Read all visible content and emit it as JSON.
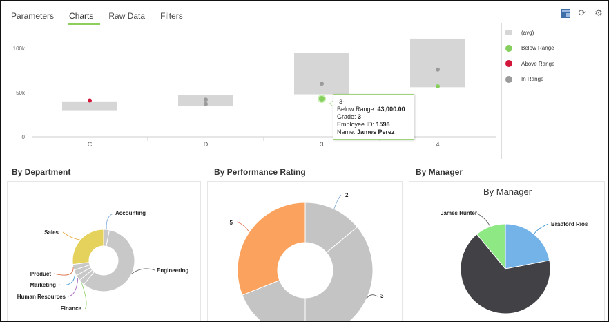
{
  "tabs": [
    {
      "label": "Parameters",
      "active": false
    },
    {
      "label": "Charts",
      "active": true
    },
    {
      "label": "Raw Data",
      "active": false
    },
    {
      "label": "Filters",
      "active": false
    }
  ],
  "toolbar": {
    "icons": [
      "layout-icon",
      "refresh-icon",
      "gear-icon"
    ]
  },
  "legend": [
    {
      "label": "(avg)",
      "color": "#d6d6d6",
      "shape": "rect"
    },
    {
      "label": "Below Range",
      "color": "#86cf5e",
      "shape": "dot"
    },
    {
      "label": "Above Range",
      "color": "#d3173a",
      "shape": "dot"
    },
    {
      "label": "In Range",
      "color": "#9b9b9b",
      "shape": "dot"
    }
  ],
  "tooltip": {
    "header": "-3-",
    "line1_label": "Below Range: ",
    "line1_value": "43,000.00",
    "line2_label": "Grade: ",
    "line2_value": "3",
    "line3_label": "Employee ID: ",
    "line3_value": "1598",
    "line4_label": "Name: ",
    "line4_value": "James Perez"
  },
  "panels": {
    "department_title": "By Department",
    "performance_title": "By Performance Rating",
    "manager_title": "By Manager"
  },
  "chart_data": [
    {
      "type": "scatter",
      "categories": [
        "C",
        "D",
        "3",
        "4"
      ],
      "y_ticks": [
        "0",
        "50k",
        "100k"
      ],
      "ylim": [
        0,
        125000
      ],
      "range_boxes": [
        {
          "category": "C",
          "low": 30000,
          "high": 40000
        },
        {
          "category": "D",
          "low": 35000,
          "high": 47000
        },
        {
          "category": "3",
          "low": 48000,
          "high": 95000
        },
        {
          "category": "4",
          "low": 56000,
          "high": 111000
        }
      ],
      "points": [
        {
          "category": "C",
          "value": 41000,
          "status": "above"
        },
        {
          "category": "D",
          "value": 42000,
          "status": "in"
        },
        {
          "category": "D",
          "value": 37000,
          "status": "in"
        },
        {
          "category": "3",
          "value": 60000,
          "status": "in"
        },
        {
          "category": "3",
          "value": 43000,
          "status": "below",
          "highlight": true
        },
        {
          "category": "4",
          "value": 76000,
          "status": "in"
        },
        {
          "category": "4",
          "value": 57000,
          "status": "below"
        }
      ],
      "status_colors": {
        "above": "#d3173a",
        "in": "#9b9b9b",
        "below": "#86cf5e"
      },
      "box_color": "#d6d6d6"
    },
    {
      "type": "pie",
      "title": "",
      "donut": true,
      "slices": [
        {
          "label": "Accounting",
          "value": 3,
          "color": "#c8c8c8"
        },
        {
          "label": "Engineering",
          "value": 58,
          "color": "#c8c8c8"
        },
        {
          "label": "Finance",
          "value": 3,
          "color": "#c8c8c8"
        },
        {
          "label": "Human Resources",
          "value": 3,
          "color": "#c8c8c8"
        },
        {
          "label": "Marketing",
          "value": 3,
          "color": "#c8c8c8"
        },
        {
          "label": "Product",
          "value": 3,
          "color": "#c8c8c8"
        },
        {
          "label": "Sales",
          "value": 27,
          "color": "#e5d25c"
        }
      ]
    },
    {
      "type": "pie",
      "title": "",
      "donut": true,
      "slices": [
        {
          "label": "2",
          "value": 14,
          "color": "#c4c4c4"
        },
        {
          "label": "3",
          "value": 36,
          "color": "#c4c4c4"
        },
        {
          "label": "",
          "value": 19,
          "color": "#c4c4c4"
        },
        {
          "label": "5",
          "value": 31,
          "color": "#fba35e"
        }
      ]
    },
    {
      "type": "pie",
      "title": "By Manager",
      "donut": false,
      "slices": [
        {
          "label": "Bradford Rios",
          "value": 22,
          "color": "#74b3e8"
        },
        {
          "label": "",
          "value": 67,
          "color": "#414146"
        },
        {
          "label": "James Hunter",
          "value": 11,
          "color": "#8ee883"
        }
      ]
    }
  ]
}
